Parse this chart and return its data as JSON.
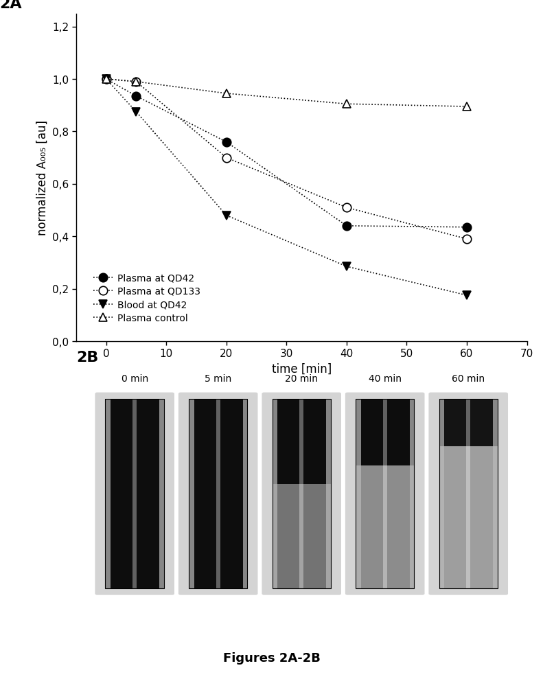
{
  "panel_label_2A": "2A",
  "panel_label_2B": "2B",
  "xlabel": "time [min]",
  "ylabel": "normalized A₀₀₅ [au]",
  "xlim": [
    -5,
    70
  ],
  "ylim": [
    0.0,
    1.25
  ],
  "xticks": [
    0,
    10,
    20,
    30,
    40,
    50,
    60,
    70
  ],
  "yticks": [
    0.0,
    0.2,
    0.4,
    0.6,
    0.8,
    1.0,
    1.2
  ],
  "ytick_labels": [
    "0,0",
    "0,2",
    "0,4",
    "0,6",
    "0,8",
    "1,0",
    "1,2"
  ],
  "series": [
    {
      "label": "Plasma at QD42",
      "x": [
        0,
        5,
        20,
        40,
        60
      ],
      "y": [
        1.0,
        0.935,
        0.76,
        0.44,
        0.435
      ],
      "marker": "o",
      "color": "black",
      "fillstyle": "full",
      "linestyle": "dotted"
    },
    {
      "label": "Plasma at QD133",
      "x": [
        0,
        5,
        20,
        40,
        60
      ],
      "y": [
        1.0,
        0.99,
        0.7,
        0.51,
        0.39
      ],
      "marker": "o",
      "color": "black",
      "fillstyle": "none",
      "linestyle": "dotted"
    },
    {
      "label": "Blood at QD42",
      "x": [
        0,
        5,
        20,
        40,
        60
      ],
      "y": [
        1.0,
        0.875,
        0.48,
        0.285,
        0.175
      ],
      "marker": "v",
      "color": "black",
      "fillstyle": "full",
      "linestyle": "dotted"
    },
    {
      "label": "Plasma control",
      "x": [
        0,
        5,
        20,
        40,
        60
      ],
      "y": [
        1.0,
        0.99,
        0.945,
        0.905,
        0.895
      ],
      "marker": "^",
      "color": "black",
      "fillstyle": "none",
      "linestyle": "dotted"
    }
  ],
  "cuvette_labels": [
    "0 min",
    "5 min",
    "20 min",
    "40 min",
    "60 min"
  ],
  "figure_label": "Figures 2A-2B",
  "background_color": "#ffffff"
}
